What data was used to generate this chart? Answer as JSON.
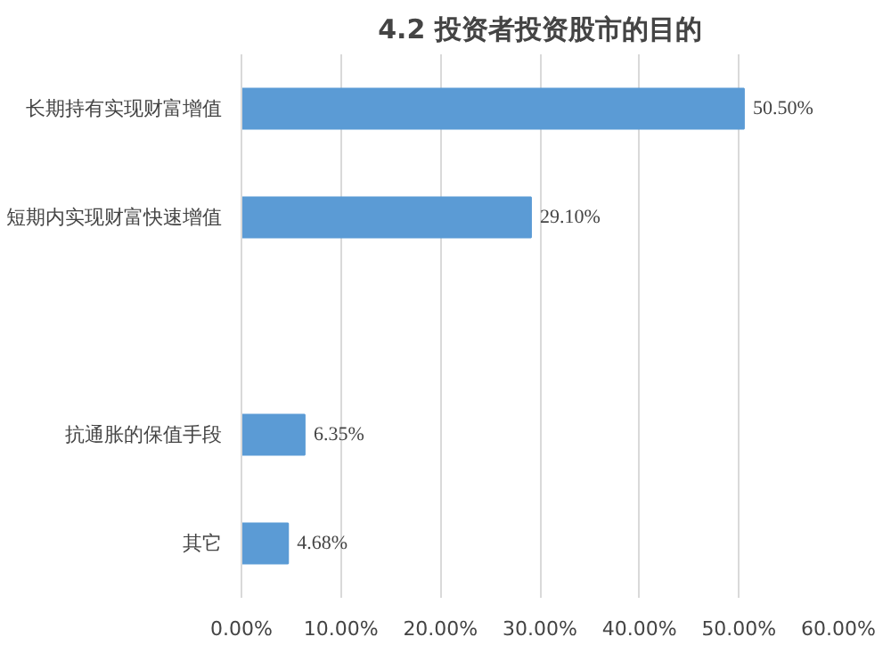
{
  "chart_data": {
    "type": "bar",
    "orientation": "horizontal",
    "title": "4.2 投资者投资股市的目的",
    "categories": [
      "长期持有实现财富增值",
      "短期内实现财富快速增值",
      null,
      "抗通胀的保值手段",
      "其它"
    ],
    "values": [
      50.5,
      29.1,
      null,
      6.35,
      4.68
    ],
    "value_labels": [
      "50.50%",
      "29.10%",
      null,
      "6.35%",
      "4.68%"
    ],
    "color": "#5b9bd5",
    "xlim": [
      0,
      60
    ],
    "xticks": [
      {
        "value": 0,
        "label": "0.00%"
      },
      {
        "value": 10,
        "label": "10.00%"
      },
      {
        "value": 20,
        "label": "20.00%"
      },
      {
        "value": 30,
        "label": "30.00%"
      },
      {
        "value": 40,
        "label": "40.00%"
      },
      {
        "value": 50,
        "label": "50.00%"
      },
      {
        "value": 60,
        "label": "60.00%"
      }
    ],
    "grid": "x"
  }
}
